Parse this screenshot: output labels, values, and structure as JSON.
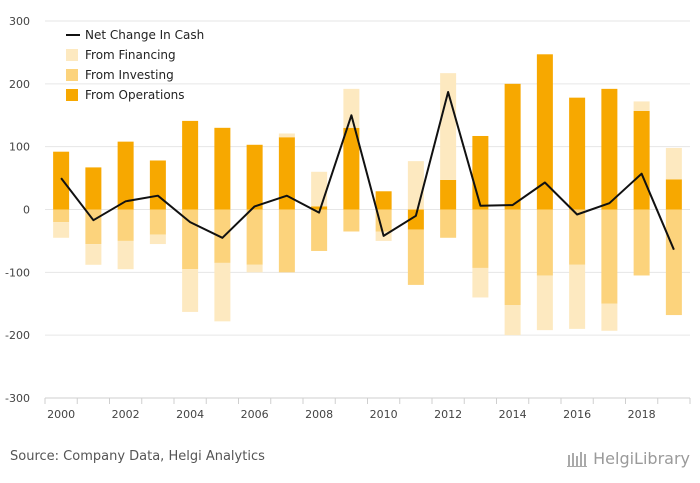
{
  "chart_data": {
    "type": "bar",
    "ylim": [
      -300,
      300
    ],
    "yticks": [
      300,
      200,
      100,
      0,
      -100,
      -200,
      -300
    ],
    "xticks": [
      "2000",
      "2002",
      "2004",
      "2006",
      "2008",
      "2010",
      "2012",
      "2014",
      "2016",
      "2018"
    ],
    "categories": [
      "2000",
      "2001",
      "2002",
      "2003",
      "2004",
      "2005",
      "2006",
      "2007",
      "2008",
      "2009",
      "2010",
      "2011",
      "2012",
      "2013",
      "2014",
      "2015",
      "2016",
      "2017",
      "2018",
      "2019"
    ],
    "series": [
      {
        "name": "From Financing",
        "color": "#fde9c0",
        "values": [
          -25,
          -33,
          -45,
          -15,
          -68,
          -93,
          -12,
          6,
          55,
          62,
          -15,
          77,
          170,
          -47,
          -48,
          -87,
          -102,
          -43,
          15,
          50
        ]
      },
      {
        "name": "From Investing",
        "color": "#fcd37c",
        "values": [
          -20,
          -55,
          -50,
          -40,
          -95,
          -85,
          -88,
          -100,
          -66,
          -35,
          -35,
          -88,
          -45,
          -93,
          -152,
          -105,
          -88,
          -150,
          -105,
          -168
        ]
      },
      {
        "name": "From Operations",
        "color": "#f7a800",
        "values": [
          92,
          67,
          108,
          78,
          141,
          130,
          103,
          115,
          5,
          130,
          29,
          -32,
          47,
          117,
          200,
          247,
          178,
          192,
          157,
          48
        ]
      }
    ],
    "line": {
      "name": "Net Change In Cash",
      "color": "#111111",
      "values": [
        50,
        -17,
        13,
        22,
        -20,
        -45,
        5,
        22,
        -5,
        150,
        -42,
        -10,
        187,
        6,
        7,
        43,
        -8,
        10,
        57,
        -64
      ]
    },
    "legend": [
      "Net Change In Cash",
      "From Financing",
      "From Investing",
      "From Operations"
    ],
    "grid": true
  },
  "footer": {
    "source": "Source: Company Data, Helgi Analytics",
    "brand": "HelgiLibrary"
  }
}
